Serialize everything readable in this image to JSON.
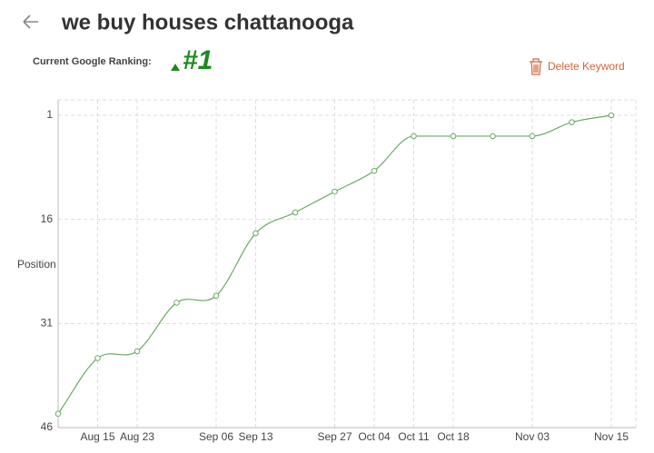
{
  "header": {
    "title": "we buy houses chattanooga",
    "ranking_label": "Current Google Ranking:",
    "ranking_value": "#1",
    "delete_label": "Delete Keyword"
  },
  "chart_data": {
    "type": "line",
    "y_label": "Position",
    "categories": [
      null,
      "Aug 15",
      "Aug 23",
      null,
      "Sep 06",
      "Sep 13",
      null,
      "Sep 27",
      "Oct 04",
      "Oct 11",
      "Oct 18",
      null,
      "Nov 03",
      null,
      "Nov 15"
    ],
    "values": [
      44,
      36,
      35,
      28,
      27,
      18,
      15,
      12,
      9,
      4,
      4,
      4,
      4,
      2,
      1
    ],
    "color": "#6aaa64",
    "ylim": [
      46,
      1
    ],
    "yticks": [
      1,
      16,
      31,
      46
    ],
    "grid": true
  }
}
